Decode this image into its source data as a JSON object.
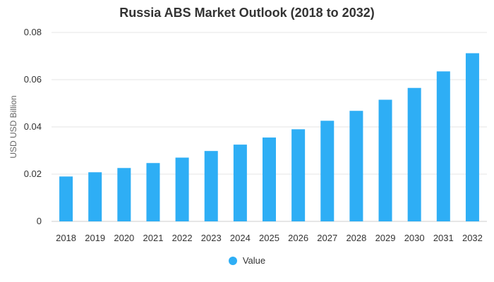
{
  "chart_data": {
    "type": "bar",
    "title": "Russia ABS Market Outlook (2018 to 2032)",
    "xlabel": "",
    "ylabel": "USD USD Billion",
    "categories": [
      "2018",
      "2019",
      "2020",
      "2021",
      "2022",
      "2023",
      "2024",
      "2025",
      "2026",
      "2027",
      "2028",
      "2029",
      "2030",
      "2031",
      "2032"
    ],
    "series": [
      {
        "name": "Value",
        "values": [
          0.019,
          0.0208,
          0.0226,
          0.0247,
          0.027,
          0.0298,
          0.0325,
          0.0355,
          0.039,
          0.0426,
          0.0468,
          0.0515,
          0.0565,
          0.0635,
          0.0712
        ]
      }
    ],
    "ylim": [
      0,
      0.08
    ],
    "yticks": [
      "0",
      "0.02",
      "0.04",
      "0.06",
      "0.08"
    ],
    "grid": true,
    "legend_position": "bottom",
    "colors": {
      "bar": "#2EAEF5",
      "grid": "#e6e6e6"
    }
  }
}
